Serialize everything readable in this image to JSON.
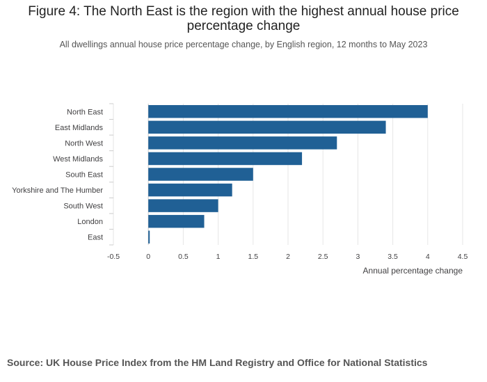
{
  "figure": {
    "title": "Figure 4: The North East is the region with the highest annual house price percentage change",
    "subtitle": "All dwellings annual house price percentage change, by English region, 12 months to May 2023",
    "source": "Source: UK House Price Index from the HM Land Registry and Office for National Statistics"
  },
  "chart_data": {
    "type": "bar",
    "orientation": "horizontal",
    "title": "Figure 4: The North East is the region with the highest annual house price percentage change",
    "subtitle": "All dwellings annual house price percentage change, by English region, 12 months to May 2023",
    "xlabel": "Annual percentage change",
    "ylabel": "",
    "categories": [
      "North East",
      "East Midlands",
      "North West",
      "West Midlands",
      "South East",
      "Yorkshire and The Humber",
      "South West",
      "London",
      "East"
    ],
    "values": [
      4.0,
      3.4,
      2.7,
      2.2,
      1.5,
      1.2,
      1.0,
      0.8,
      0.02
    ],
    "xlim": [
      -0.5,
      4.5
    ],
    "xticks": [
      -0.5,
      0,
      0.5,
      1,
      1.5,
      2,
      2.5,
      3,
      3.5,
      4,
      4.5
    ],
    "xtick_labels": [
      "-0.5",
      "0",
      "0.5",
      "1",
      "1.5",
      "2",
      "2.5",
      "3",
      "3.5",
      "4",
      "4.5"
    ],
    "grid": true,
    "bar_color": "#206095",
    "grid_color": "#e6e6e6",
    "axis_color": "#cccccc"
  }
}
